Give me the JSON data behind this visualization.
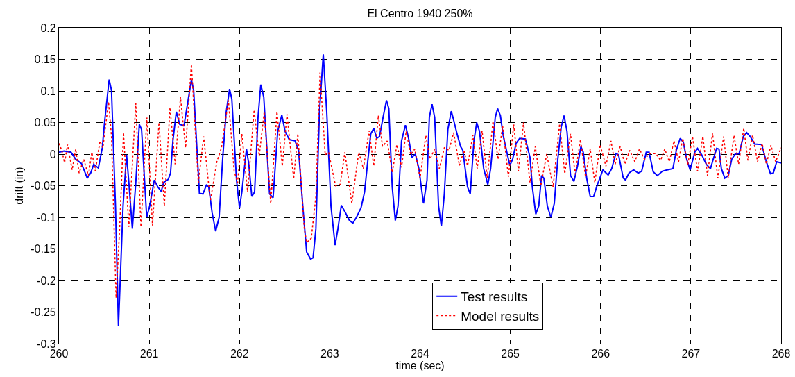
{
  "chart_data": {
    "type": "line",
    "title": "El Centro 1940 250%",
    "xlabel": "time (sec)",
    "ylabel": "drift (in)",
    "xlim": [
      260,
      268
    ],
    "xticks": [
      260,
      261,
      262,
      263,
      264,
      265,
      266,
      267,
      268
    ],
    "ylim": [
      -0.3,
      0.2
    ],
    "yticks": [
      -0.3,
      -0.25,
      -0.2,
      -0.15,
      -0.1,
      -0.05,
      0,
      0.05,
      0.1,
      0.15,
      0.2
    ],
    "grid": true,
    "legend": "bottom",
    "series": [
      {
        "name": "Test results",
        "color": "#0000ff",
        "line_style": "solid",
        "x": [
          260.0,
          260.056,
          260.133,
          260.185,
          260.25,
          260.313,
          260.351,
          260.385,
          260.436,
          260.48,
          260.505,
          260.556,
          260.582,
          260.626,
          260.659,
          260.71,
          260.749,
          260.774,
          260.813,
          260.851,
          260.89,
          260.915,
          260.972,
          261.005,
          261.056,
          261.095,
          261.133,
          261.159,
          261.21,
          261.236,
          261.262,
          261.3,
          261.338,
          261.385,
          261.428,
          261.467,
          261.492,
          261.556,
          261.595,
          261.633,
          261.659,
          261.697,
          261.736,
          261.774,
          261.813,
          261.851,
          261.89,
          261.915,
          261.967,
          262.0,
          262.026,
          262.077,
          262.103,
          262.136,
          262.167,
          262.205,
          262.236,
          262.269,
          262.333,
          262.372,
          262.423,
          262.469,
          262.505,
          262.551,
          262.615,
          262.654,
          262.705,
          262.744,
          262.787,
          262.815,
          262.846,
          262.885,
          262.928,
          262.967,
          263.013,
          263.059,
          263.09,
          263.128,
          263.167,
          263.218,
          263.256,
          263.295,
          263.346,
          263.385,
          263.423,
          263.454,
          263.487,
          263.521,
          263.551,
          263.59,
          263.628,
          263.654,
          263.692,
          263.726,
          263.756,
          263.795,
          263.838,
          263.872,
          263.91,
          263.949,
          263.987,
          264.038,
          264.077,
          264.103,
          264.133,
          264.162,
          264.205,
          264.236,
          264.269,
          264.308,
          264.346,
          264.372,
          264.41,
          264.449,
          264.474,
          264.526,
          264.556,
          264.597,
          264.628,
          264.659,
          264.705,
          264.751,
          264.782,
          264.833,
          264.859,
          264.89,
          264.923,
          264.962,
          264.995,
          265.026,
          265.064,
          265.103,
          265.167,
          265.218,
          265.244,
          265.282,
          265.315,
          265.346,
          265.372,
          265.41,
          265.449,
          265.487,
          265.526,
          265.564,
          265.595,
          265.628,
          265.667,
          265.705,
          265.744,
          265.782,
          265.808,
          265.846,
          265.885,
          265.923,
          265.962,
          266.0,
          266.026,
          266.084,
          266.123,
          266.169,
          266.199,
          266.251,
          266.276,
          266.315,
          266.366,
          266.417,
          266.455,
          266.506,
          266.537,
          266.583,
          266.629,
          266.685,
          266.737,
          266.801,
          266.839,
          266.882,
          266.916,
          266.954,
          266.992,
          267.043,
          267.074,
          267.12,
          267.171,
          267.217,
          267.248,
          267.286,
          267.312,
          267.338,
          267.376,
          267.414,
          267.453,
          267.491,
          267.535,
          267.581,
          267.619,
          267.657,
          267.708,
          267.785,
          267.836,
          267.882,
          267.913,
          267.951,
          268.0
        ],
        "values": [
          0.003,
          0.005,
          0.003,
          -0.008,
          -0.015,
          -0.038,
          -0.03,
          -0.016,
          -0.022,
          0.01,
          0.05,
          0.118,
          0.101,
          -0.082,
          -0.272,
          -0.082,
          -0.001,
          -0.045,
          -0.118,
          -0.045,
          0.047,
          0.039,
          -0.1,
          -0.082,
          -0.041,
          -0.052,
          -0.059,
          -0.045,
          -0.04,
          -0.03,
          0.021,
          0.067,
          0.047,
          0.045,
          0.083,
          0.118,
          0.101,
          -0.062,
          -0.063,
          -0.049,
          -0.052,
          -0.093,
          -0.122,
          -0.1,
          -0.008,
          0.065,
          0.103,
          0.087,
          -0.041,
          -0.085,
          -0.06,
          0.008,
          -0.016,
          -0.067,
          -0.06,
          0.058,
          0.11,
          0.09,
          -0.063,
          -0.069,
          0.036,
          0.062,
          0.036,
          0.023,
          0.021,
          0.006,
          -0.089,
          -0.155,
          -0.166,
          -0.164,
          -0.118,
          0.065,
          0.158,
          0.065,
          -0.082,
          -0.144,
          -0.118,
          -0.081,
          -0.091,
          -0.105,
          -0.109,
          -0.1,
          -0.085,
          -0.06,
          -0.008,
          0.032,
          0.041,
          0.025,
          0.028,
          0.058,
          0.085,
          0.072,
          -0.052,
          -0.105,
          -0.082,
          0.021,
          0.046,
          0.026,
          -0.005,
          0.0,
          -0.023,
          -0.078,
          -0.041,
          0.058,
          0.079,
          0.058,
          -0.082,
          -0.114,
          -0.063,
          0.039,
          0.068,
          0.054,
          0.032,
          0.012,
          0.006,
          -0.052,
          -0.063,
          0.021,
          0.05,
          0.036,
          -0.023,
          -0.048,
          -0.023,
          0.058,
          0.072,
          0.061,
          0.028,
          0.003,
          -0.018,
          -0.008,
          0.017,
          0.025,
          0.024,
          -0.005,
          -0.052,
          -0.095,
          -0.082,
          -0.034,
          -0.038,
          -0.082,
          -0.1,
          -0.078,
          -0.008,
          0.043,
          0.061,
          0.036,
          -0.034,
          -0.043,
          -0.019,
          0.012,
          0.003,
          -0.038,
          -0.067,
          -0.067,
          -0.049,
          -0.035,
          -0.025,
          -0.033,
          -0.023,
          0.001,
          -0.001,
          -0.038,
          -0.041,
          -0.03,
          -0.025,
          -0.03,
          -0.027,
          0.003,
          0.003,
          -0.028,
          -0.034,
          -0.027,
          -0.025,
          -0.023,
          0.006,
          0.025,
          0.019,
          -0.008,
          -0.025,
          0.003,
          0.009,
          -0.001,
          -0.016,
          -0.023,
          -0.008,
          0.009,
          0.008,
          -0.023,
          -0.038,
          -0.034,
          -0.008,
          0.0,
          0.001,
          0.028,
          0.034,
          0.028,
          0.016,
          0.015,
          -0.012,
          -0.031,
          -0.03,
          -0.012,
          -0.014
        ]
      },
      {
        "name": "Model results",
        "color": "#ff0000",
        "line_style": "dotted",
        "x": [
          260.0,
          260.031,
          260.062,
          260.095,
          260.146,
          260.185,
          260.223,
          260.274,
          260.326,
          260.364,
          260.403,
          260.454,
          260.487,
          260.549,
          260.582,
          260.633,
          260.672,
          260.715,
          260.774,
          260.851,
          260.908,
          260.974,
          261.036,
          261.108,
          261.167,
          261.23,
          261.287,
          261.346,
          261.403,
          261.467,
          261.544,
          261.603,
          261.677,
          261.749,
          261.8,
          261.877,
          261.941,
          261.979,
          262.026,
          262.09,
          262.162,
          262.218,
          262.274,
          262.346,
          262.415,
          262.474,
          262.526,
          262.6,
          262.646,
          262.718,
          262.744,
          262.795,
          262.846,
          262.892,
          262.949,
          262.987,
          263.064,
          263.115,
          263.167,
          263.244,
          263.321,
          263.372,
          263.436,
          263.487,
          263.538,
          263.585,
          263.636,
          263.692,
          263.744,
          263.795,
          263.846,
          263.897,
          263.941,
          264.0,
          264.064,
          264.11,
          264.162,
          264.213,
          264.269,
          264.321,
          264.372,
          264.436,
          264.487,
          264.526,
          264.585,
          264.633,
          264.687,
          264.744,
          264.808,
          264.864,
          264.915,
          264.979,
          265.038,
          265.09,
          265.146,
          265.218,
          265.277,
          265.338,
          265.403,
          265.474,
          265.546,
          265.603,
          265.667,
          265.718,
          265.777,
          265.833,
          265.885,
          265.936,
          265.995,
          266.059,
          266.115,
          266.161,
          266.217,
          266.269,
          266.322,
          266.379,
          266.43,
          266.486,
          266.545,
          266.614,
          266.665,
          266.711,
          266.762,
          266.813,
          266.864,
          266.91,
          266.967,
          267.018,
          267.074,
          267.133,
          267.184,
          267.24,
          267.299,
          267.363,
          267.414,
          267.478,
          267.529,
          267.586,
          267.632,
          267.683,
          267.739,
          267.79,
          267.836,
          267.887,
          267.939,
          268.0
        ],
        "values": [
          0.017,
          0.006,
          -0.014,
          0.015,
          -0.025,
          0.008,
          -0.03,
          -0.008,
          -0.034,
          0.003,
          -0.027,
          0.021,
          0.01,
          0.083,
          0.028,
          -0.228,
          -0.118,
          0.034,
          -0.115,
          0.081,
          -0.115,
          0.058,
          -0.113,
          0.05,
          -0.082,
          0.074,
          -0.016,
          0.09,
          0.01,
          0.142,
          -0.045,
          0.028,
          -0.074,
          -0.012,
          0.01,
          0.085,
          -0.027,
          -0.045,
          0.032,
          -0.06,
          0.07,
          -0.003,
          0.067,
          -0.078,
          0.067,
          -0.019,
          0.063,
          -0.039,
          0.032,
          -0.118,
          -0.14,
          -0.133,
          -0.067,
          0.129,
          -0.001,
          0.003,
          -0.05,
          -0.048,
          0.003,
          -0.078,
          0.003,
          -0.023,
          0.037,
          -0.019,
          0.061,
          0.012,
          0.021,
          -0.029,
          0.015,
          -0.021,
          0.036,
          -0.001,
          0.008,
          -0.038,
          0.03,
          -0.008,
          0.008,
          -0.023,
          0.01,
          0.006,
          0.034,
          -0.018,
          0.006,
          -0.019,
          0.03,
          -0.023,
          0.037,
          -0.038,
          0.052,
          -0.008,
          0.045,
          -0.036,
          0.047,
          -0.027,
          0.05,
          -0.045,
          0.012,
          -0.05,
          0.0,
          -0.052,
          0.048,
          -0.031,
          0.032,
          -0.032,
          0.023,
          -0.036,
          0.008,
          -0.045,
          0.015,
          -0.019,
          0.021,
          -0.016,
          0.012,
          -0.016,
          0.006,
          -0.012,
          0.008,
          -0.008,
          0.001,
          0.001,
          -0.01,
          0.008,
          -0.012,
          0.021,
          -0.012,
          0.025,
          -0.016,
          0.028,
          -0.027,
          0.028,
          -0.034,
          0.033,
          -0.038,
          0.028,
          -0.038,
          0.03,
          -0.016,
          0.041,
          -0.01,
          0.03,
          -0.012,
          0.017,
          -0.016,
          0.014,
          -0.012,
          0.01
        ]
      }
    ]
  }
}
